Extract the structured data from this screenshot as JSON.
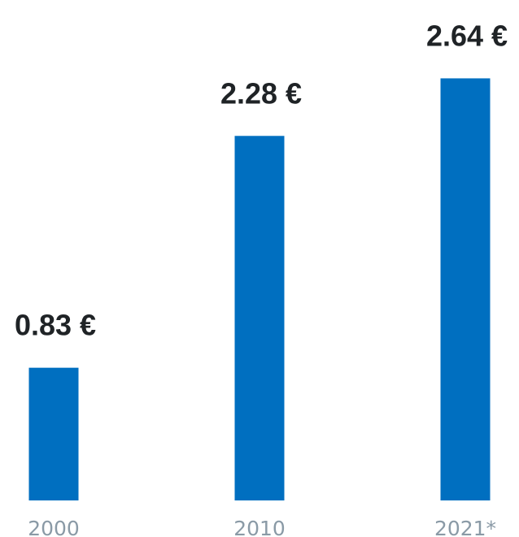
{
  "chart_data": {
    "type": "bar",
    "categories": [
      "2000",
      "2010",
      "2021*"
    ],
    "values": [
      0.83,
      2.28,
      2.64
    ],
    "data_labels": [
      "0.83 €",
      "2.28 €",
      "2.64 €"
    ],
    "ylim": [
      0,
      3.13
    ],
    "grid": false,
    "legend": "none",
    "colors": {
      "bar": "#006fc0",
      "value_text": "#1f2326",
      "tick_text": "#8a9aa6",
      "background": "#ffffff"
    }
  }
}
